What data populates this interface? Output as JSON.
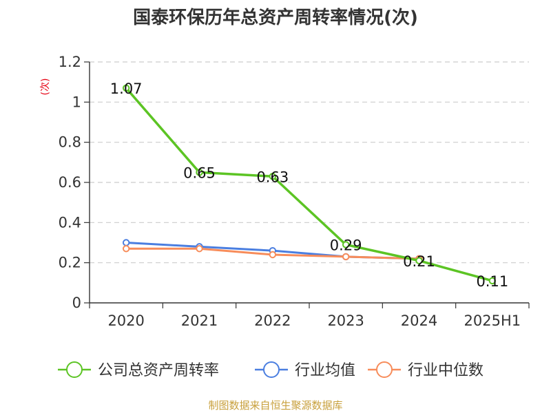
{
  "chart_data": {
    "type": "line",
    "title": "国泰环保历年总资产周转率情况(次)",
    "y_unit": "(次)",
    "categories": [
      "2020",
      "2021",
      "2022",
      "2023",
      "2024",
      "2025H1"
    ],
    "ylim": [
      0,
      1.2
    ],
    "yticks": [
      0,
      0.2,
      0.4,
      0.6,
      0.8,
      1,
      1.2
    ],
    "ytick_labels": [
      "0",
      "0.2",
      "0.4",
      "0.6",
      "0.8",
      "1",
      "1.2"
    ],
    "grid": true,
    "legend_position": "bottom",
    "series": [
      {
        "name": "公司总资产周转率",
        "color": "#5cc424",
        "values": [
          1.07,
          0.65,
          0.63,
          0.29,
          0.21,
          0.11
        ],
        "labels": [
          "1.07",
          "0.65",
          "0.63",
          "0.29",
          "0.21",
          "0.11"
        ]
      },
      {
        "name": "行业均值",
        "color": "#4a7ee0",
        "values": [
          0.3,
          0.28,
          0.26,
          0.23,
          0.22,
          null
        ]
      },
      {
        "name": "行业中位数",
        "color": "#f78c5a",
        "values": [
          0.27,
          0.27,
          0.24,
          0.23,
          0.22,
          null
        ]
      }
    ],
    "source": "制图数据来自恒生聚源数据库"
  }
}
